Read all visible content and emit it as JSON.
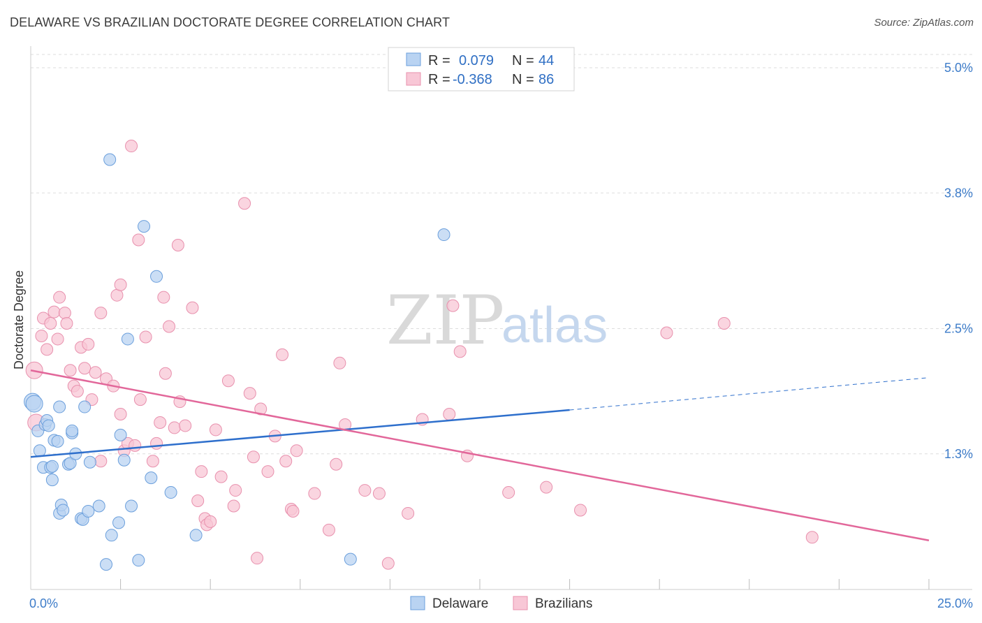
{
  "title": "DELAWARE VS BRAZILIAN DOCTORATE DEGREE CORRELATION CHART",
  "source": "Source: ZipAtlas.com",
  "watermark": {
    "zip": "ZIP",
    "atlas": "atlas"
  },
  "colors": {
    "delaware_fill": "#b9d3f2",
    "delaware_stroke": "#6b9fdc",
    "delaware_line": "#2e6fcc",
    "brazilians_fill": "#f8c7d6",
    "brazilians_stroke": "#e890ad",
    "brazilians_line": "#e2679a",
    "grid": "#dddddd",
    "axis_text": "#3d7cc9"
  },
  "legend": {
    "rows": [
      {
        "r_label": "R =",
        "r_value": "0.079",
        "n_label": "N =",
        "n_value": "44"
      },
      {
        "r_label": "R =",
        "r_value": "-0.368",
        "n_label": "N =",
        "n_value": "86"
      }
    ]
  },
  "chart_data": {
    "type": "scatter",
    "title": "DELAWARE VS BRAZILIAN DOCTORATE DEGREE CORRELATION CHART",
    "xlabel": "",
    "ylabel": "Doctorate Degree",
    "xlim": [
      0,
      25
    ],
    "ylim": [
      0,
      5.2
    ],
    "x_tick_labels": [
      "0.0%",
      "25.0%"
    ],
    "y_ticks": [
      1.3,
      2.5,
      3.8,
      5.0
    ],
    "y_tick_labels": [
      "1.3%",
      "2.5%",
      "3.8%",
      "5.0%"
    ],
    "series": [
      {
        "name": "Delaware",
        "r": 0.079,
        "n": 44,
        "trend": {
          "x0": 0,
          "y0": 1.27,
          "x1": 15,
          "y1": 1.72,
          "dashed_to_x": 25,
          "dashed_to_y": 2.03
        },
        "points": [
          [
            0.05,
            1.8
          ],
          [
            0.1,
            1.78
          ],
          [
            0.2,
            1.52
          ],
          [
            0.25,
            1.33
          ],
          [
            0.35,
            1.17
          ],
          [
            0.4,
            1.58
          ],
          [
            0.45,
            1.62
          ],
          [
            0.5,
            1.57
          ],
          [
            0.55,
            1.17
          ],
          [
            0.6,
            1.18
          ],
          [
            0.6,
            1.05
          ],
          [
            0.65,
            1.43
          ],
          [
            0.75,
            1.42
          ],
          [
            0.8,
            1.75
          ],
          [
            0.8,
            0.73
          ],
          [
            0.85,
            0.81
          ],
          [
            0.9,
            0.76
          ],
          [
            1.05,
            1.2
          ],
          [
            1.1,
            1.21
          ],
          [
            1.15,
            1.5
          ],
          [
            1.15,
            1.52
          ],
          [
            1.25,
            1.3
          ],
          [
            1.4,
            0.68
          ],
          [
            1.45,
            0.67
          ],
          [
            1.5,
            1.75
          ],
          [
            1.6,
            0.75
          ],
          [
            1.65,
            1.22
          ],
          [
            1.9,
            0.8
          ],
          [
            2.1,
            0.24
          ],
          [
            2.25,
            0.52
          ],
          [
            2.45,
            0.64
          ],
          [
            2.5,
            1.48
          ],
          [
            2.6,
            1.24
          ],
          [
            2.7,
            2.4
          ],
          [
            2.8,
            0.8
          ],
          [
            3.0,
            0.28
          ],
          [
            3.35,
            1.07
          ],
          [
            3.5,
            3.0
          ],
          [
            3.9,
            0.93
          ],
          [
            4.6,
            0.52
          ],
          [
            8.9,
            0.29
          ],
          [
            11.5,
            3.4
          ],
          [
            3.15,
            3.48
          ],
          [
            2.2,
            4.12
          ]
        ]
      },
      {
        "name": "Brazilians",
        "r": -0.368,
        "n": 86,
        "trend": {
          "x0": 0,
          "y0": 2.1,
          "x1": 25,
          "y1": 0.47
        },
        "points": [
          [
            0.1,
            2.1
          ],
          [
            0.15,
            1.6
          ],
          [
            0.3,
            2.43
          ],
          [
            0.35,
            2.6
          ],
          [
            0.45,
            2.3
          ],
          [
            0.55,
            2.55
          ],
          [
            0.65,
            2.66
          ],
          [
            0.75,
            2.4
          ],
          [
            0.8,
            2.8
          ],
          [
            0.95,
            2.65
          ],
          [
            1.0,
            2.55
          ],
          [
            1.1,
            2.1
          ],
          [
            1.2,
            1.95
          ],
          [
            1.3,
            1.9
          ],
          [
            1.4,
            2.32
          ],
          [
            1.5,
            2.12
          ],
          [
            1.6,
            2.35
          ],
          [
            1.7,
            1.82
          ],
          [
            1.8,
            2.08
          ],
          [
            1.95,
            1.23
          ],
          [
            1.95,
            2.65
          ],
          [
            2.1,
            2.02
          ],
          [
            2.3,
            1.95
          ],
          [
            2.4,
            2.82
          ],
          [
            2.5,
            2.92
          ],
          [
            2.5,
            1.68
          ],
          [
            2.6,
            1.33
          ],
          [
            2.7,
            1.4
          ],
          [
            2.8,
            4.25
          ],
          [
            2.9,
            1.38
          ],
          [
            3.0,
            3.35
          ],
          [
            3.05,
            1.82
          ],
          [
            3.2,
            2.42
          ],
          [
            3.4,
            1.23
          ],
          [
            3.5,
            1.4
          ],
          [
            3.6,
            1.6
          ],
          [
            3.7,
            2.8
          ],
          [
            3.75,
            2.07
          ],
          [
            3.85,
            2.52
          ],
          [
            4.0,
            1.55
          ],
          [
            4.1,
            3.3
          ],
          [
            4.15,
            1.8
          ],
          [
            4.3,
            1.57
          ],
          [
            4.5,
            2.7
          ],
          [
            4.65,
            0.85
          ],
          [
            4.75,
            1.13
          ],
          [
            4.85,
            0.68
          ],
          [
            4.9,
            0.62
          ],
          [
            5.0,
            0.65
          ],
          [
            5.15,
            1.53
          ],
          [
            5.3,
            1.08
          ],
          [
            5.5,
            2.0
          ],
          [
            5.65,
            0.8
          ],
          [
            5.7,
            0.95
          ],
          [
            5.95,
            3.7
          ],
          [
            6.1,
            1.88
          ],
          [
            6.2,
            1.27
          ],
          [
            6.3,
            0.3
          ],
          [
            6.4,
            1.73
          ],
          [
            6.6,
            1.13
          ],
          [
            6.8,
            1.47
          ],
          [
            7.0,
            2.25
          ],
          [
            7.1,
            1.23
          ],
          [
            7.25,
            0.77
          ],
          [
            7.3,
            0.75
          ],
          [
            7.4,
            1.33
          ],
          [
            7.9,
            0.92
          ],
          [
            8.3,
            0.57
          ],
          [
            8.5,
            1.2
          ],
          [
            8.6,
            2.17
          ],
          [
            8.75,
            1.58
          ],
          [
            9.3,
            0.95
          ],
          [
            9.7,
            0.92
          ],
          [
            9.95,
            0.25
          ],
          [
            10.5,
            0.73
          ],
          [
            10.9,
            1.63
          ],
          [
            11.65,
            1.68
          ],
          [
            11.75,
            2.72
          ],
          [
            11.95,
            2.28
          ],
          [
            12.15,
            1.28
          ],
          [
            13.3,
            0.93
          ],
          [
            14.35,
            0.98
          ],
          [
            15.3,
            0.76
          ],
          [
            17.7,
            2.46
          ],
          [
            19.3,
            2.55
          ],
          [
            21.75,
            0.5
          ]
        ]
      }
    ],
    "legend_position": "top-center",
    "bottom_legend": [
      "Delaware",
      "Brazilians"
    ]
  }
}
